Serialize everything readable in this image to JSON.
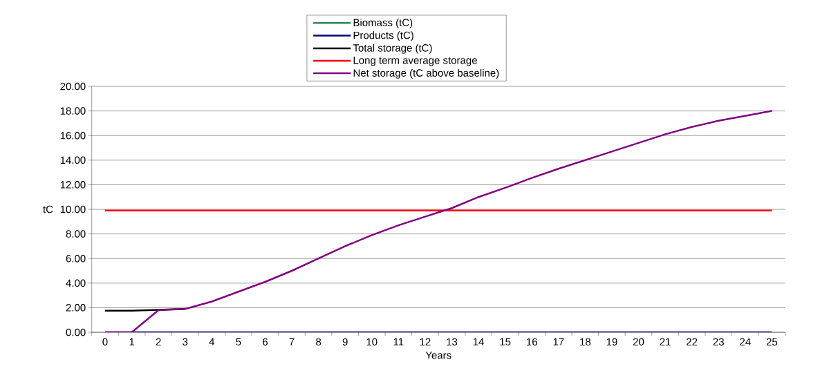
{
  "chart_data": {
    "type": "line",
    "xlabel": "Years",
    "ylabel": "tC",
    "categories": [
      "0",
      "1",
      "2",
      "3",
      "4",
      "5",
      "6",
      "7",
      "8",
      "9",
      "10",
      "11",
      "12",
      "13",
      "14",
      "15",
      "16",
      "17",
      "18",
      "19",
      "20",
      "21",
      "22",
      "23",
      "24",
      "25"
    ],
    "ylim": [
      0,
      20
    ],
    "yticks": [
      {
        "value": 0,
        "label": "0.00"
      },
      {
        "value": 2,
        "label": "2.00"
      },
      {
        "value": 4,
        "label": "4.00"
      },
      {
        "value": 6,
        "label": "6.00"
      },
      {
        "value": 8,
        "label": "8.00"
      },
      {
        "value": 10,
        "label": "10.00"
      },
      {
        "value": 12,
        "label": "12.00"
      },
      {
        "value": 14,
        "label": "14.00"
      },
      {
        "value": 16,
        "label": "16.00"
      },
      {
        "value": 18,
        "label": "18.00"
      },
      {
        "value": 20,
        "label": "20.00"
      }
    ],
    "grid": "y",
    "legend": "top",
    "marker": "none",
    "line_style": "solid",
    "series": [
      {
        "name": "Biomass (tC)",
        "color": "#2e8b57",
        "values": [
          null,
          null,
          null,
          null,
          null,
          null,
          null,
          null,
          null,
          null,
          null,
          null,
          null,
          null,
          null,
          null,
          null,
          null,
          null,
          null,
          null,
          null,
          null,
          null,
          null,
          null
        ]
      },
      {
        "name": "Products (tC)",
        "color": "#000080",
        "values": [
          0,
          0,
          0,
          0,
          0,
          0,
          0,
          0,
          0,
          0,
          0,
          0,
          0,
          0,
          0,
          0,
          0,
          0,
          0,
          0,
          0,
          0,
          0,
          0,
          0,
          0
        ]
      },
      {
        "name": "Total storage (tC)",
        "color": "#000000",
        "values": [
          1.75,
          1.75,
          1.82,
          1.9,
          null,
          null,
          null,
          null,
          null,
          null,
          null,
          null,
          null,
          null,
          null,
          null,
          null,
          null,
          null,
          null,
          null,
          null,
          null,
          null,
          null,
          null
        ]
      },
      {
        "name": "Long term average storage",
        "color": "#ff0000",
        "values": [
          9.9,
          9.9,
          9.9,
          9.9,
          9.9,
          9.9,
          9.9,
          9.9,
          9.9,
          9.9,
          9.9,
          9.9,
          9.9,
          9.9,
          9.9,
          9.9,
          9.9,
          9.9,
          9.9,
          9.9,
          9.9,
          9.9,
          9.9,
          9.9,
          9.9,
          9.9
        ]
      },
      {
        "name": "Net storage (tC above baseline)",
        "color": "#800080",
        "values": [
          0,
          0,
          1.8,
          1.9,
          2.5,
          3.3,
          4.1,
          5.0,
          6.0,
          7.0,
          7.9,
          8.7,
          9.4,
          10.1,
          11.0,
          11.75,
          12.55,
          13.3,
          14.0,
          14.7,
          15.4,
          16.1,
          16.7,
          17.2,
          17.6,
          18.0
        ]
      }
    ]
  }
}
